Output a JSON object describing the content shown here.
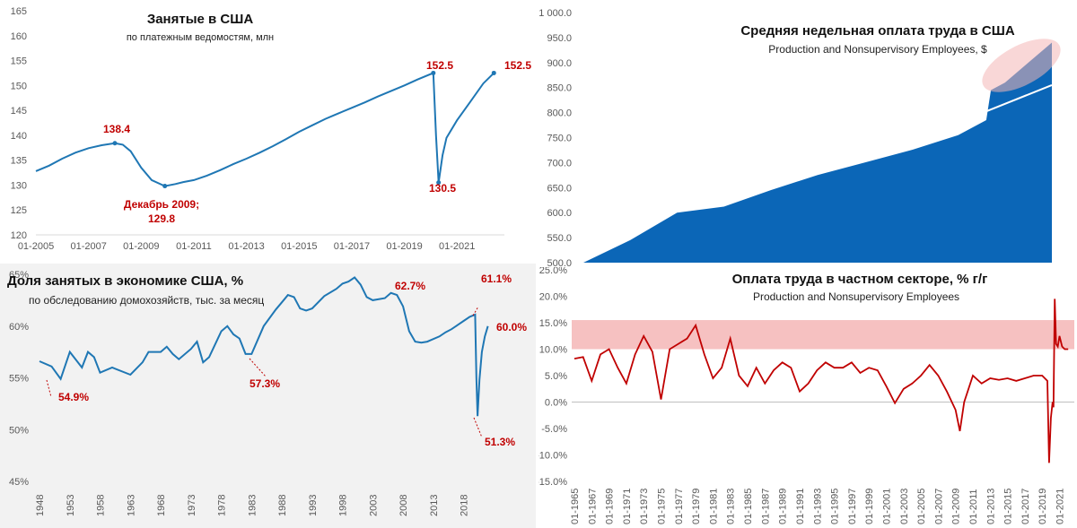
{
  "chart_data": [
    {
      "id": "employment",
      "type": "line",
      "title": "Занятые в США",
      "subtitle": "по платежным ведомостям, млн",
      "xlim": [
        2005,
        2022.8
      ],
      "ylim": [
        120,
        165
      ],
      "yticks": [
        "120",
        "125",
        "130",
        "135",
        "140",
        "145",
        "150",
        "155",
        "160",
        "165"
      ],
      "xticks": [
        {
          "x": 2005,
          "label": "01-2005"
        },
        {
          "x": 2007,
          "label": "01-2007"
        },
        {
          "x": 2009,
          "label": "01-2009"
        },
        {
          "x": 2011,
          "label": "01-2011"
        },
        {
          "x": 2013,
          "label": "01-2013"
        },
        {
          "x": 2015,
          "label": "01-2015"
        },
        {
          "x": 2017,
          "label": "01-2017"
        },
        {
          "x": 2019,
          "label": "01-2019"
        },
        {
          "x": 2021,
          "label": "01-2021"
        }
      ],
      "line_color": "#1f77b4",
      "series": [
        {
          "x": [
            2005,
            2005.5,
            2006,
            2006.5,
            2007,
            2007.5,
            2008,
            2008.3,
            2008.6,
            2009,
            2009.4,
            2009.9,
            2010.3,
            2010.6,
            2011,
            2011.5,
            2012,
            2012.5,
            2013,
            2013.5,
            2014,
            2014.5,
            2015,
            2015.5,
            2016,
            2016.5,
            2017,
            2017.5,
            2018,
            2018.5,
            2019,
            2019.5,
            2020.1,
            2020.2,
            2020.3,
            2020.45,
            2020.6,
            2021,
            2021.5,
            2022,
            2022.4
          ],
          "y": [
            132.8,
            133.9,
            135.3,
            136.5,
            137.4,
            138.0,
            138.4,
            138.1,
            136.8,
            133.5,
            131.0,
            129.8,
            130.2,
            130.6,
            131.0,
            131.9,
            133.0,
            134.2,
            135.3,
            136.5,
            137.8,
            139.2,
            140.7,
            142.0,
            143.3,
            144.4,
            145.5,
            146.6,
            147.8,
            148.9,
            150.0,
            151.2,
            152.5,
            140,
            130.5,
            136,
            139.5,
            143,
            146.7,
            150.4,
            152.5
          ]
        }
      ],
      "annotations": [
        {
          "label": "138.4"
        },
        {
          "label": "Декабрь 2009;"
        },
        {
          "label": "129.8"
        },
        {
          "label": "152.5"
        },
        {
          "label": "130.5"
        },
        {
          "label": "152.5"
        }
      ]
    },
    {
      "id": "weekly_pay",
      "type": "area",
      "title": "Средняя недельная оплата труда в США",
      "subtitle": "Production and Nonsupervisory Employees, $",
      "ylim": [
        500,
        1000
      ],
      "yticks": [
        "500.0",
        "550.0",
        "600.0",
        "650.0",
        "700.0",
        "750.0",
        "800.0",
        "850.0",
        "900.0",
        "950.0",
        "1 000.0"
      ],
      "area_color": "#0b66b7",
      "trend_color": "#ffffff",
      "highlight_color": "#f4b6b6",
      "series": [
        {
          "t": [
            0,
            0.1,
            0.2,
            0.3,
            0.4,
            0.5,
            0.6,
            0.7,
            0.8,
            0.86,
            0.87,
            0.9,
            0.95,
            1.0
          ],
          "y": [
            493,
            545,
            600,
            612,
            645,
            675,
            700,
            725,
            755,
            785,
            845,
            860,
            900,
            940
          ]
        }
      ],
      "trend": [
        {
          "t": 0.72,
          "y": 750
        },
        {
          "t": 1.0,
          "y": 855
        }
      ]
    },
    {
      "id": "emp_pop_ratio",
      "type": "line",
      "title": "Доля занятых в экономике США, %",
      "subtitle": "по обследованию домохозяйств, тыс. за месяц",
      "xlim": [
        1948,
        2022.5
      ],
      "ylim": [
        45,
        65
      ],
      "yticks": [
        {
          "v": 45,
          "label": "45%"
        },
        {
          "v": 50,
          "label": "50%"
        },
        {
          "v": 55,
          "label": "55%"
        },
        {
          "v": 60,
          "label": "60%"
        },
        {
          "v": 65,
          "label": "65%"
        }
      ],
      "xticks": [
        "1948",
        "1953",
        "1958",
        "1963",
        "1968",
        "1973",
        "1978",
        "1983",
        "1988",
        "1993",
        "1998",
        "2003",
        "2008",
        "2013",
        "2018"
      ],
      "line_color": "#1f77b4",
      "series": [
        {
          "x": [
            1948,
            1950,
            1951.5,
            1953,
            1955,
            1956,
            1957,
            1958,
            1960,
            1963,
            1965,
            1966,
            1968,
            1969,
            1970,
            1971,
            1973,
            1974,
            1975,
            1976,
            1978,
            1979,
            1980,
            1981,
            1982,
            1983,
            1985,
            1987,
            1988,
            1989,
            1990,
            1991,
            1992,
            1993,
            1995,
            1997,
            1998,
            1999,
            2000,
            2001,
            2002,
            2003,
            2005,
            2006,
            2007,
            2008,
            2009,
            2010,
            2011,
            2012,
            2014,
            2015,
            2016,
            2017,
            2018,
            2019,
            2019.9,
            2020.1,
            2020.3,
            2020.6,
            2021,
            2021.5,
            2022
          ],
          "y": [
            56.6,
            56.1,
            54.9,
            57.5,
            56.0,
            57.5,
            57.0,
            55.5,
            56.0,
            55.3,
            56.5,
            57.5,
            57.5,
            58.0,
            57.3,
            56.8,
            57.8,
            58.5,
            56.5,
            57.0,
            59.5,
            60.0,
            59.2,
            58.8,
            57.3,
            57.3,
            60.0,
            61.6,
            62.3,
            63.0,
            62.8,
            61.7,
            61.5,
            61.7,
            62.9,
            63.6,
            64.1,
            64.3,
            64.7,
            64.0,
            62.8,
            62.5,
            62.7,
            63.2,
            63.0,
            61.9,
            59.5,
            58.5,
            58.4,
            58.5,
            59.0,
            59.4,
            59.7,
            60.1,
            60.5,
            60.9,
            61.1,
            55,
            51.3,
            54.8,
            57.5,
            59.0,
            60.0
          ]
        }
      ],
      "annotations": [
        {
          "label": "54.9%"
        },
        {
          "label": "57.3%"
        },
        {
          "label": "62.7%"
        },
        {
          "label": "61.1%"
        },
        {
          "label": "60.0%"
        },
        {
          "label": "51.3%"
        }
      ]
    },
    {
      "id": "private_pay_yoy",
      "type": "line",
      "title": "Оплата труда в частном секторе, % г/г",
      "subtitle": "Production and Nonsupervisory Employees",
      "xlim": [
        1965,
        2022.5
      ],
      "ylim": [
        -15,
        25
      ],
      "yticks": [
        {
          "v": -15,
          "label": "-15.0%"
        },
        {
          "v": -10,
          "label": "-10.0%"
        },
        {
          "v": -5,
          "label": "-5.0%"
        },
        {
          "v": 0,
          "label": "0.0%"
        },
        {
          "v": 5,
          "label": "5.0%"
        },
        {
          "v": 10,
          "label": "10.0%"
        },
        {
          "v": 15,
          "label": "15.0%"
        },
        {
          "v": 20,
          "label": "20.0%"
        },
        {
          "v": 25,
          "label": "25.0%"
        }
      ],
      "xticks": [
        "01-1965",
        "01-1967",
        "01-1969",
        "01-1971",
        "01-1973",
        "01-1975",
        "01-1977",
        "01-1979",
        "01-1981",
        "01-1983",
        "01-1985",
        "01-1987",
        "01-1989",
        "01-1991",
        "01-1993",
        "01-1995",
        "01-1997",
        "01-1999",
        "01-2001",
        "01-2003",
        "01-2005",
        "01-2007",
        "01-2009",
        "01-2011",
        "01-2013",
        "01-2015",
        "01-2017",
        "01-2019",
        "01-2021"
      ],
      "band": [
        10,
        15.5
      ],
      "band_color": "#f4b6b6",
      "line_color": "#c00000",
      "series": [
        {
          "x": [
            1965,
            1966,
            1967,
            1968,
            1969,
            1970,
            1971,
            1972,
            1973,
            1974,
            1975,
            1976,
            1977,
            1978,
            1979,
            1980,
            1981,
            1982,
            1983,
            1984,
            1985,
            1986,
            1987,
            1988,
            1989,
            1990,
            1991,
            1992,
            1993,
            1994,
            1995,
            1996,
            1997,
            1998,
            1999,
            2000,
            2001,
            2002,
            2003,
            2004,
            2005,
            2006,
            2007,
            2008,
            2009,
            2009.5,
            2010,
            2011,
            2012,
            2013,
            2014,
            2015,
            2016,
            2017,
            2018,
            2019,
            2019.6,
            2019.8,
            2020.0,
            2020.2,
            2020.3,
            2020.45,
            2020.6,
            2020.8,
            2021,
            2021.3,
            2021.6,
            2022
          ],
          "y": [
            8.2,
            8.5,
            4.0,
            9.0,
            10.0,
            6.5,
            3.5,
            9.0,
            12.5,
            9.5,
            0.5,
            10.0,
            11.0,
            12.0,
            14.5,
            9.0,
            4.5,
            6.5,
            12.0,
            5.0,
            3.0,
            6.5,
            3.5,
            6.0,
            7.5,
            6.5,
            2.0,
            3.5,
            6.0,
            7.5,
            6.5,
            6.5,
            7.5,
            5.5,
            6.5,
            6.0,
            3.0,
            -0.2,
            2.5,
            3.5,
            5.0,
            7.0,
            5.0,
            2.0,
            -1.5,
            -5.5,
            0,
            5.0,
            3.5,
            4.5,
            4.2,
            4.5,
            4.0,
            4.5,
            5.0,
            5.0,
            4.0,
            -11.5,
            -3.0,
            0.0,
            -1.0,
            19.5,
            11.0,
            10.5,
            12.5,
            10.5,
            10.0,
            10.0
          ]
        }
      ]
    }
  ]
}
